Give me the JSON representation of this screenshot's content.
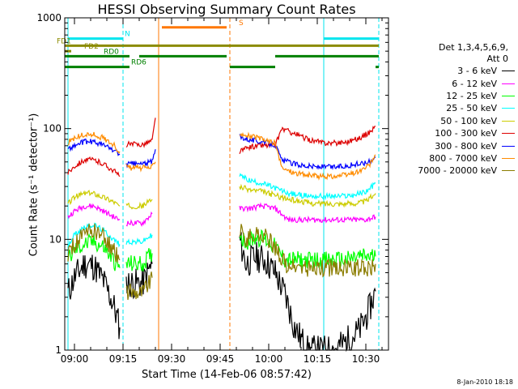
{
  "chart_data": {
    "type": "line",
    "title": "HESSI Observing Summary Count Rates",
    "xlabel": "Start Time (14-Feb-06 08:57:42)",
    "ylabel": "Count Rate (s⁻¹ detector⁻¹)",
    "yscale": "log",
    "ylim": [
      1,
      1000
    ],
    "xlim": [
      "08:57",
      "10:37"
    ],
    "x_ticks": [
      "09:00",
      "09:15",
      "09:30",
      "09:45",
      "10:00",
      "10:15",
      "10:30"
    ],
    "y_ticks": [
      "1",
      "10",
      "100",
      "1000"
    ],
    "grid": false,
    "legend_position": "right",
    "legend_header": [
      "Det 1,3,4,5,6,9,",
      "Att 0"
    ],
    "series": [
      {
        "name": "3 - 6 keV",
        "color": "#000000",
        "segments": [
          {
            "x": [
              "08:58",
              "09:00",
              "09:03",
              "09:06",
              "09:09",
              "09:12",
              "09:14"
            ],
            "y": [
              3.3,
              4.5,
              6,
              5.8,
              4.2,
              2.6,
              1.6
            ]
          },
          {
            "x": [
              "09:16",
              "09:18",
              "09:21",
              "09:24"
            ],
            "y": [
              4,
              4,
              4,
              6
            ]
          },
          {
            "x": [
              "09:51",
              "09:53",
              "09:56",
              "09:59",
              "10:02",
              "10:05",
              "10:08",
              "10:12",
              "10:16",
              "10:20",
              "10:24",
              "10:28",
              "10:31",
              "10:33"
            ],
            "y": [
              10,
              6,
              7,
              6.5,
              5,
              3.2,
              1.6,
              1,
              1,
              1,
              1.2,
              1.5,
              2.3,
              3.4
            ]
          }
        ]
      },
      {
        "name": "6 - 12 keV",
        "color": "#ff00ff",
        "segments": [
          {
            "x": [
              "08:58",
              "09:00",
              "09:03",
              "09:06",
              "09:09",
              "09:12",
              "09:14"
            ],
            "y": [
              16,
              18,
              20,
              20,
              18,
              16,
              15
            ]
          },
          {
            "x": [
              "09:16",
              "09:18",
              "09:21",
              "09:24"
            ],
            "y": [
              14,
              14,
              14,
              17
            ]
          },
          {
            "x": [
              "09:51",
              "09:54",
              "09:58",
              "10:02",
              "10:06",
              "10:10",
              "10:14",
              "10:18",
              "10:22",
              "10:26",
              "10:30",
              "10:33"
            ],
            "y": [
              19,
              19,
              20,
              19,
              15,
              15,
              15,
              15,
              15,
              15,
              15,
              16
            ]
          }
        ]
      },
      {
        "name": "12 - 25 keV",
        "color": "#00ff00",
        "segments": [
          {
            "x": [
              "08:58",
              "09:00",
              "09:03",
              "09:06",
              "09:09",
              "09:12",
              "09:14"
            ],
            "y": [
              6.5,
              8,
              9,
              9.5,
              8.5,
              6.5,
              5.5
            ]
          },
          {
            "x": [
              "09:16",
              "09:18",
              "09:21",
              "09:24"
            ],
            "y": [
              6,
              6,
              6,
              7.5
            ]
          },
          {
            "x": [
              "09:51",
              "09:53",
              "09:56",
              "09:59",
              "10:02",
              "10:05",
              "10:08",
              "10:12",
              "10:16",
              "10:20",
              "10:24",
              "10:28",
              "10:31",
              "10:33"
            ],
            "y": [
              11,
              9.5,
              10.5,
              10,
              8.5,
              6.5,
              6.5,
              6.5,
              6.5,
              6.5,
              6.5,
              7,
              7,
              7
            ]
          }
        ]
      },
      {
        "name": "25 - 50 keV",
        "color": "#00ffff",
        "segments": [
          {
            "x": [
              "08:58",
              "09:00",
              "09:03",
              "09:06",
              "09:09",
              "09:12",
              "09:14"
            ],
            "y": [
              9,
              11,
              13,
              13.5,
              12,
              10,
              9
            ]
          },
          {
            "x": [
              "09:16",
              "09:18",
              "09:21",
              "09:24"
            ],
            "y": [
              9.5,
              9.5,
              9.5,
              11
            ]
          },
          {
            "x": [
              "09:51",
              "09:54",
              "09:58",
              "10:02",
              "10:06",
              "10:10",
              "10:14",
              "10:18",
              "10:22",
              "10:26",
              "10:30",
              "10:33"
            ],
            "y": [
              38,
              34,
              32,
              29,
              26,
              25,
              24.5,
              24.5,
              24.5,
              25,
              27,
              32
            ]
          }
        ]
      },
      {
        "name": "50 - 100 keV",
        "color": "#cccc00",
        "segments": [
          {
            "x": [
              "08:58",
              "09:00",
              "09:03",
              "09:06",
              "09:09",
              "09:12",
              "09:14"
            ],
            "y": [
              21,
              24,
              26,
              26,
              24,
              22,
              20
            ]
          },
          {
            "x": [
              "09:16",
              "09:18",
              "09:21",
              "09:24"
            ],
            "y": [
              20,
              20,
              20,
              23
            ]
          },
          {
            "x": [
              "09:51",
              "09:54",
              "09:58",
              "10:02",
              "10:06",
              "10:10",
              "10:14",
              "10:18",
              "10:22",
              "10:26",
              "10:30",
              "10:33"
            ],
            "y": [
              30,
              28,
              27,
              25,
              23,
              22,
              21,
              21,
              21,
              21,
              22,
              26
            ]
          }
        ]
      },
      {
        "name": "100 - 300 keV",
        "color": "#dd0000",
        "segments": [
          {
            "x": [
              "08:58",
              "09:00",
              "09:03",
              "09:06",
              "09:09",
              "09:12",
              "09:14"
            ],
            "y": [
              40,
              46,
              52,
              52,
              48,
              42,
              37
            ]
          },
          {
            "x": [
              "09:16",
              "09:18",
              "09:21",
              "09:24",
              "09:25"
            ],
            "y": [
              72,
              72,
              72,
              78,
              125
            ]
          },
          {
            "x": [
              "09:51",
              "09:54",
              "09:58",
              "10:02",
              "10:04",
              "10:08",
              "10:12",
              "10:16",
              "10:20",
              "10:24",
              "10:28",
              "10:31",
              "10:33"
            ],
            "y": [
              62,
              68,
              71,
              70,
              100,
              90,
              80,
              75,
              74,
              76,
              82,
              92,
              105
            ]
          }
        ]
      },
      {
        "name": "300 - 800 keV",
        "color": "#0000ff",
        "segments": [
          {
            "x": [
              "08:58",
              "09:00",
              "09:03",
              "09:06",
              "09:09",
              "09:12",
              "09:14"
            ],
            "y": [
              65,
              70,
              76,
              76,
              71,
              64,
              58
            ]
          },
          {
            "x": [
              "09:16",
              "09:18",
              "09:21",
              "09:24",
              "09:25"
            ],
            "y": [
              48,
              48,
              48,
              50,
              65
            ]
          },
          {
            "x": [
              "09:51",
              "09:54",
              "09:58",
              "10:02",
              "10:04",
              "10:08",
              "10:12",
              "10:16",
              "10:20",
              "10:24",
              "10:28",
              "10:31",
              "10:33"
            ],
            "y": [
              85,
              80,
              76,
              72,
              52,
              48,
              46,
              45,
              45,
              46,
              48,
              50,
              55
            ]
          }
        ]
      },
      {
        "name": "800 - 7000 keV",
        "color": "#ff8c00",
        "segments": [
          {
            "x": [
              "08:58",
              "09:00",
              "09:03",
              "09:06",
              "09:09",
              "09:12",
              "09:14"
            ],
            "y": [
              75,
              82,
              88,
              88,
              82,
              72,
              62
            ]
          },
          {
            "x": [
              "09:16",
              "09:18",
              "09:21",
              "09:24",
              "09:25"
            ],
            "y": [
              45,
              44,
              44,
              45,
              50
            ]
          },
          {
            "x": [
              "09:51",
              "09:54",
              "09:58",
              "10:02",
              "10:04",
              "10:08",
              "10:12",
              "10:16",
              "10:20",
              "10:24",
              "10:28",
              "10:31",
              "10:33"
            ],
            "y": [
              92,
              86,
              80,
              74,
              44,
              40,
              38,
              37,
              37,
              38,
              41,
              46,
              58
            ]
          }
        ]
      },
      {
        "name": "7000 - 20000 keV",
        "color": "#8b7d00",
        "segments": [
          {
            "x": [
              "08:58",
              "09:00",
              "09:03",
              "09:06",
              "09:09",
              "09:12",
              "09:14"
            ],
            "y": [
              7.5,
              9,
              11,
              12,
              10.5,
              8,
              6.5
            ]
          },
          {
            "x": [
              "09:16",
              "09:18",
              "09:21",
              "09:24"
            ],
            "y": [
              3.4,
              3.4,
              3.4,
              4.5
            ]
          },
          {
            "x": [
              "09:51",
              "09:53",
              "09:56",
              "09:59",
              "10:02",
              "10:05",
              "10:08",
              "10:12",
              "10:16",
              "10:20",
              "10:24",
              "10:28",
              "10:31",
              "10:33"
            ],
            "y": [
              12,
              10,
              11,
              10.5,
              8.5,
              6,
              5.5,
              5.5,
              5.5,
              5.5,
              5.5,
              5.5,
              5.5,
              6
            ]
          }
        ]
      }
    ],
    "flag_bars": [
      {
        "label": "N",
        "color": "#00e5ee",
        "y": 650,
        "segments": [
          [
            "08:58",
            "09:15"
          ],
          [
            "10:17",
            "10:34"
          ]
        ]
      },
      {
        "label": "S",
        "color": "#ff7700",
        "y": 820,
        "segments": [
          [
            "09:27",
            "09:47"
          ]
        ]
      },
      {
        "label": "FD1",
        "color": "#8b8b00",
        "y": 560,
        "segments": [
          [
            "08:57",
            "10:34"
          ]
        ]
      },
      {
        "label": "FD2",
        "color": "#8b8b00",
        "y": 500,
        "segments": [
          [
            "08:57",
            "08:59"
          ]
        ]
      },
      {
        "label": "RD0",
        "color": "#008000",
        "y": 450,
        "segments": [
          [
            "08:57",
            "09:17"
          ],
          [
            "09:20",
            "09:47"
          ],
          [
            "10:02",
            "10:34"
          ]
        ]
      },
      {
        "label": "RD6",
        "color": "#008000",
        "y": 360,
        "segments": [
          [
            "08:57",
            "09:17"
          ],
          [
            "09:48",
            "10:02"
          ],
          [
            "10:33",
            "10:34"
          ]
        ]
      }
    ],
    "vertical_markers": [
      {
        "x": "08:58",
        "color": "#00e5ee",
        "style": "solid"
      },
      {
        "x": "09:15",
        "color": "#00e5ee",
        "style": "dashed"
      },
      {
        "x": "09:26",
        "color": "#ff7700",
        "style": "solid"
      },
      {
        "x": "09:48",
        "color": "#ff7700",
        "style": "dashed"
      },
      {
        "x": "10:17",
        "color": "#00e5ee",
        "style": "solid"
      },
      {
        "x": "10:34",
        "color": "#00e5ee",
        "style": "dashed"
      }
    ]
  },
  "footer_stamp": "8-Jan-2010 18:18"
}
